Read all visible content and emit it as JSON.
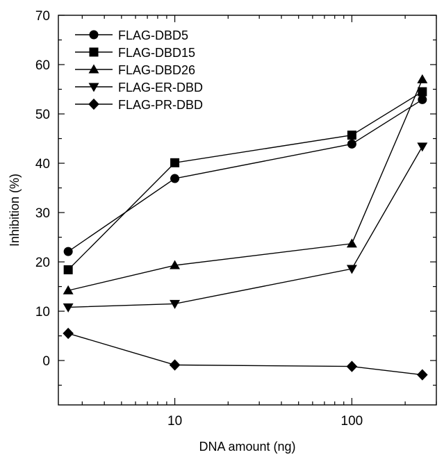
{
  "chart_data": {
    "type": "line",
    "xlabel": "DNA amount (ng)",
    "ylabel": "Inhibition (%)",
    "x_scale": "log",
    "xlim": [
      2.2,
      300
    ],
    "ylim": [
      -9,
      70
    ],
    "x_ticks": [
      10,
      100
    ],
    "x_tick_labels": [
      "10",
      "100"
    ],
    "y_ticks": [
      0,
      10,
      20,
      30,
      40,
      50,
      60,
      70
    ],
    "y_tick_labels": [
      "0",
      "10",
      "20",
      "30",
      "40",
      "50",
      "60",
      "70"
    ],
    "x": [
      2.5,
      10,
      100,
      250
    ],
    "legend_position": "top-left",
    "grid": false,
    "series": [
      {
        "name": "FLAG-DBD5",
        "marker": "circle",
        "values": [
          22.1,
          36.9,
          43.9,
          52.9
        ]
      },
      {
        "name": "FLAG-DBD15",
        "marker": "square",
        "values": [
          18.4,
          40.1,
          45.7,
          54.5
        ]
      },
      {
        "name": "FLAG-DBD26",
        "marker": "triangle-up",
        "values": [
          14.2,
          19.3,
          23.7,
          57.0
        ]
      },
      {
        "name": "FLAG-ER-DBD",
        "marker": "triangle-down",
        "values": [
          10.8,
          11.5,
          18.6,
          43.4
        ]
      },
      {
        "name": "FLAG-PR-DBD",
        "marker": "diamond",
        "values": [
          5.5,
          -0.9,
          -1.2,
          -2.9
        ]
      }
    ]
  }
}
